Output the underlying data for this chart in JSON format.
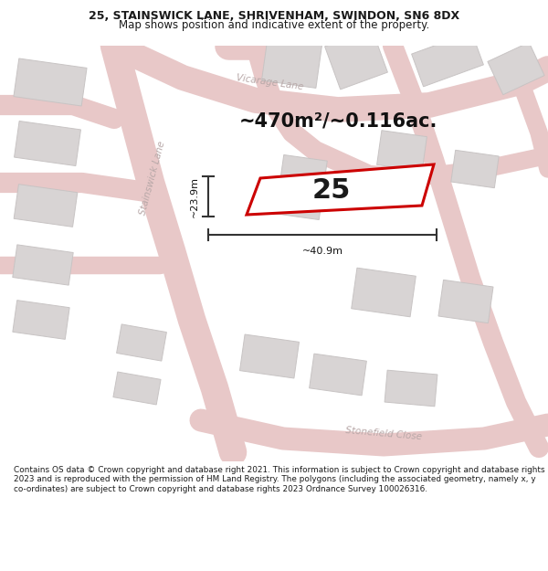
{
  "title_line1": "25, STAINSWICK LANE, SHRIVENHAM, SWINDON, SN6 8DX",
  "title_line2": "Map shows position and indicative extent of the property.",
  "area_text": "~470m²/~0.116ac.",
  "plot_number": "25",
  "dim_width": "~40.9m",
  "dim_height": "~23.9m",
  "footer_text": "Contains OS data © Crown copyright and database right 2021. This information is subject to Crown copyright and database rights 2023 and is reproduced with the permission of HM Land Registry. The polygons (including the associated geometry, namely x, y co-ordinates) are subject to Crown copyright and database rights 2023 Ordnance Survey 100026316.",
  "map_bg": "#f2f0f0",
  "road_color": "#e8c8c8",
  "road_fill": "#f5f0f0",
  "building_color": "#d8d4d4",
  "building_edge": "#c8c4c4",
  "plot_fill": "#ffffff",
  "plot_edge": "#cc0000",
  "dim_color": "#333333",
  "street_label_color": "#b8a8a8",
  "white": "#ffffff",
  "text_dark": "#1a1a1a",
  "footer_text_color": "#1a1a1a",
  "title_fontsize": 9.0,
  "subtitle_fontsize": 8.5,
  "area_fontsize": 15,
  "plot_num_fontsize": 22,
  "dim_fontsize": 8,
  "street_fontsize": 7.5
}
